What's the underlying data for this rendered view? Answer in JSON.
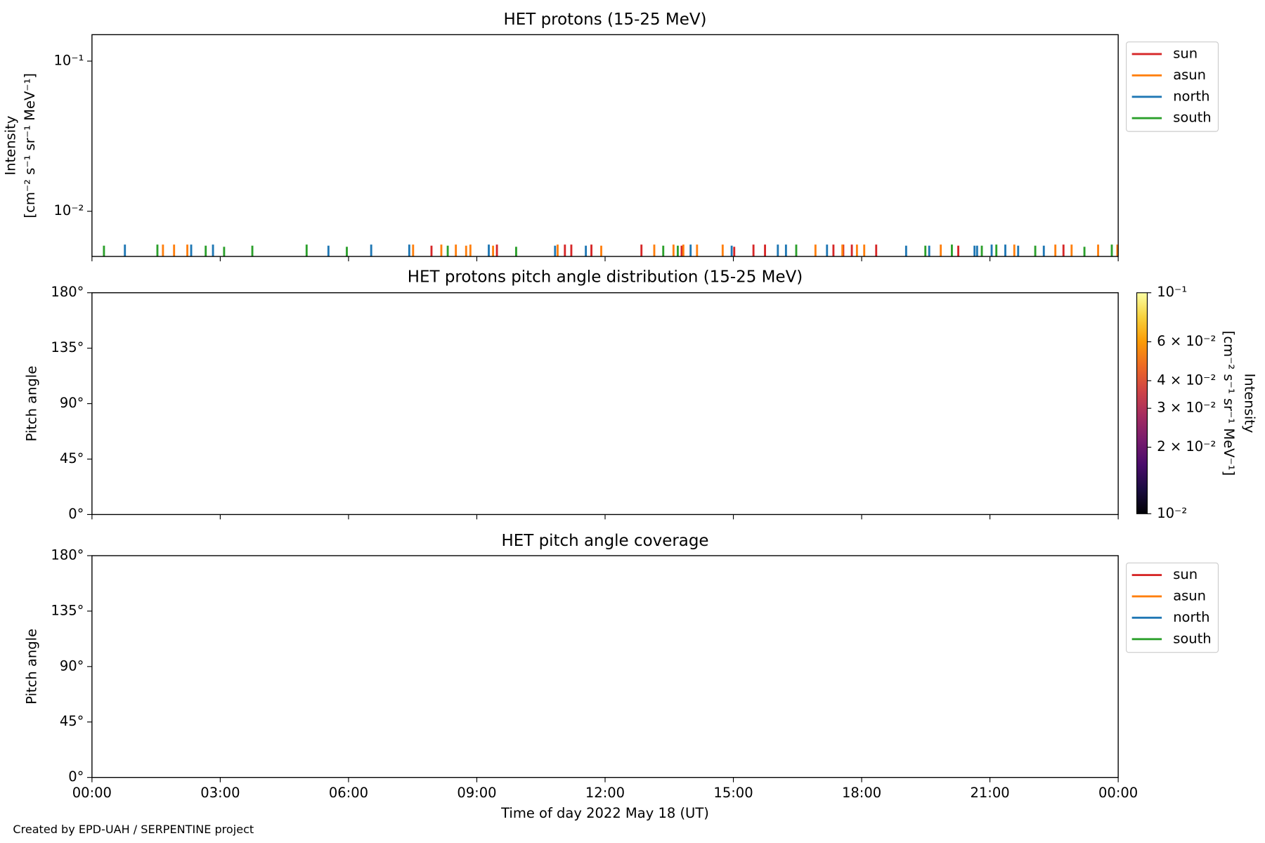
{
  "chart_data": [
    {
      "type": "line",
      "title": "HET protons (15-25 MeV)",
      "ylabel": [
        "Intensity",
        "[cm⁻² s⁻¹ sr⁻¹ MeV⁻¹]"
      ],
      "yscale": "log",
      "xlim": [
        0,
        24
      ],
      "xticks": [
        0,
        3,
        6,
        9,
        12,
        15,
        18,
        21,
        24
      ],
      "ylim": [
        0.005,
        0.15
      ],
      "yticks": [
        {
          "value": 0.01,
          "label": "10⁻²"
        },
        {
          "value": 0.1,
          "label": "10⁻¹"
        }
      ],
      "legend": "outside-right",
      "series": [
        {
          "name": "sun",
          "color": "#d62728",
          "x": [
            7.94,
            9.47,
            11.06,
            11.21,
            11.68,
            12.85,
            13.79,
            15.02,
            15.47,
            15.74,
            17.34,
            17.57,
            17.77,
            18.34,
            20.26,
            22.72
          ],
          "values": [
            0.0059,
            0.006,
            0.006,
            0.006,
            0.006,
            0.006,
            0.0059,
            0.0058,
            0.006,
            0.006,
            0.006,
            0.006,
            0.006,
            0.006,
            0.0059,
            0.006
          ]
        },
        {
          "name": "asun",
          "color": "#ff7f0e",
          "x": [
            1.66,
            1.92,
            2.23,
            7.51,
            8.17,
            8.51,
            8.75,
            8.85,
            9.38,
            10.89,
            11.91,
            13.15,
            13.6,
            13.83,
            14.15,
            14.75,
            16.92,
            17.55,
            17.89,
            18.06,
            19.85,
            21.57,
            22.53,
            22.91,
            23.53,
            23.98
          ],
          "values": [
            0.006,
            0.006,
            0.006,
            0.006,
            0.006,
            0.006,
            0.0059,
            0.006,
            0.0059,
            0.006,
            0.0059,
            0.006,
            0.006,
            0.006,
            0.006,
            0.006,
            0.006,
            0.006,
            0.006,
            0.006,
            0.006,
            0.006,
            0.006,
            0.006,
            0.006,
            0.006
          ]
        },
        {
          "name": "north",
          "color": "#1f77b4",
          "x": [
            0.77,
            2.32,
            2.83,
            5.53,
            6.53,
            7.42,
            9.28,
            10.83,
            11.55,
            14.0,
            14.96,
            16.04,
            16.23,
            17.19,
            19.04,
            19.58,
            20.64,
            20.7,
            21.04,
            21.36,
            21.66,
            22.26
          ],
          "values": [
            0.006,
            0.006,
            0.006,
            0.0059,
            0.006,
            0.006,
            0.006,
            0.0059,
            0.0059,
            0.006,
            0.0059,
            0.006,
            0.006,
            0.006,
            0.0059,
            0.0059,
            0.0059,
            0.0059,
            0.006,
            0.006,
            0.0059,
            0.0059
          ]
        },
        {
          "name": "south",
          "color": "#2ca02c",
          "x": [
            0.28,
            1.53,
            2.66,
            3.09,
            3.75,
            5.02,
            5.96,
            8.32,
            9.92,
            13.36,
            13.7,
            16.47,
            19.49,
            20.11,
            20.81,
            21.15,
            22.06,
            23.21,
            23.85
          ],
          "values": [
            0.0059,
            0.006,
            0.0059,
            0.0058,
            0.0059,
            0.006,
            0.0058,
            0.0059,
            0.0058,
            0.0059,
            0.0059,
            0.006,
            0.0059,
            0.006,
            0.0059,
            0.006,
            0.0059,
            0.0058,
            0.006
          ]
        }
      ]
    },
    {
      "type": "heatmap",
      "title": "HET protons pitch angle distribution (15-25 MeV)",
      "ylabel": "Pitch angle",
      "xlim": [
        0,
        24
      ],
      "xticks": [
        0,
        3,
        6,
        9,
        12,
        15,
        18,
        21,
        24
      ],
      "ylim": [
        0,
        180
      ],
      "yticks": [
        {
          "value": 0,
          "label": "0°"
        },
        {
          "value": 45,
          "label": "45°"
        },
        {
          "value": 90,
          "label": "90°"
        },
        {
          "value": 135,
          "label": "135°"
        },
        {
          "value": 180,
          "label": "180°"
        }
      ],
      "colorbar": {
        "label": [
          "Intensity",
          "[cm⁻² s⁻¹ sr⁻¹ MeV⁻¹]"
        ],
        "scale": "log",
        "colormap": "inferno",
        "lim": [
          0.01,
          0.1
        ],
        "ticks": [
          {
            "value": 0.01,
            "label": "10⁻²"
          },
          {
            "value": 0.02,
            "label": "2 × 10⁻²"
          },
          {
            "value": 0.03,
            "label": "3 × 10⁻²"
          },
          {
            "value": 0.04,
            "label": "4 × 10⁻²"
          },
          {
            "value": 0.06,
            "label": "6 × 10⁻²"
          },
          {
            "value": 0.1,
            "label": "10⁻¹"
          }
        ]
      }
    },
    {
      "type": "line",
      "title": "HET pitch angle coverage",
      "ylabel": "Pitch angle",
      "xlabel": "Time of day 2022 May 18 (UT)",
      "xlim": [
        0,
        24
      ],
      "xticks": [
        {
          "value": 0,
          "label": "00:00"
        },
        {
          "value": 3,
          "label": "03:00"
        },
        {
          "value": 6,
          "label": "06:00"
        },
        {
          "value": 9,
          "label": "09:00"
        },
        {
          "value": 12,
          "label": "12:00"
        },
        {
          "value": 15,
          "label": "15:00"
        },
        {
          "value": 18,
          "label": "18:00"
        },
        {
          "value": 21,
          "label": "21:00"
        },
        {
          "value": 24,
          "label": "00:00"
        }
      ],
      "ylim": [
        0,
        180
      ],
      "yticks": [
        {
          "value": 0,
          "label": "0°"
        },
        {
          "value": 45,
          "label": "45°"
        },
        {
          "value": 90,
          "label": "90°"
        },
        {
          "value": 135,
          "label": "135°"
        },
        {
          "value": 180,
          "label": "180°"
        }
      ],
      "legend": "outside-right",
      "series": [
        {
          "name": "sun",
          "color": "#d62728",
          "x": [],
          "values": []
        },
        {
          "name": "asun",
          "color": "#ff7f0e",
          "x": [],
          "values": []
        },
        {
          "name": "north",
          "color": "#1f77b4",
          "x": [],
          "values": []
        },
        {
          "name": "south",
          "color": "#2ca02c",
          "x": [],
          "values": []
        }
      ]
    }
  ],
  "footer": "Created by EPD-UAH / SERPENTINE project"
}
